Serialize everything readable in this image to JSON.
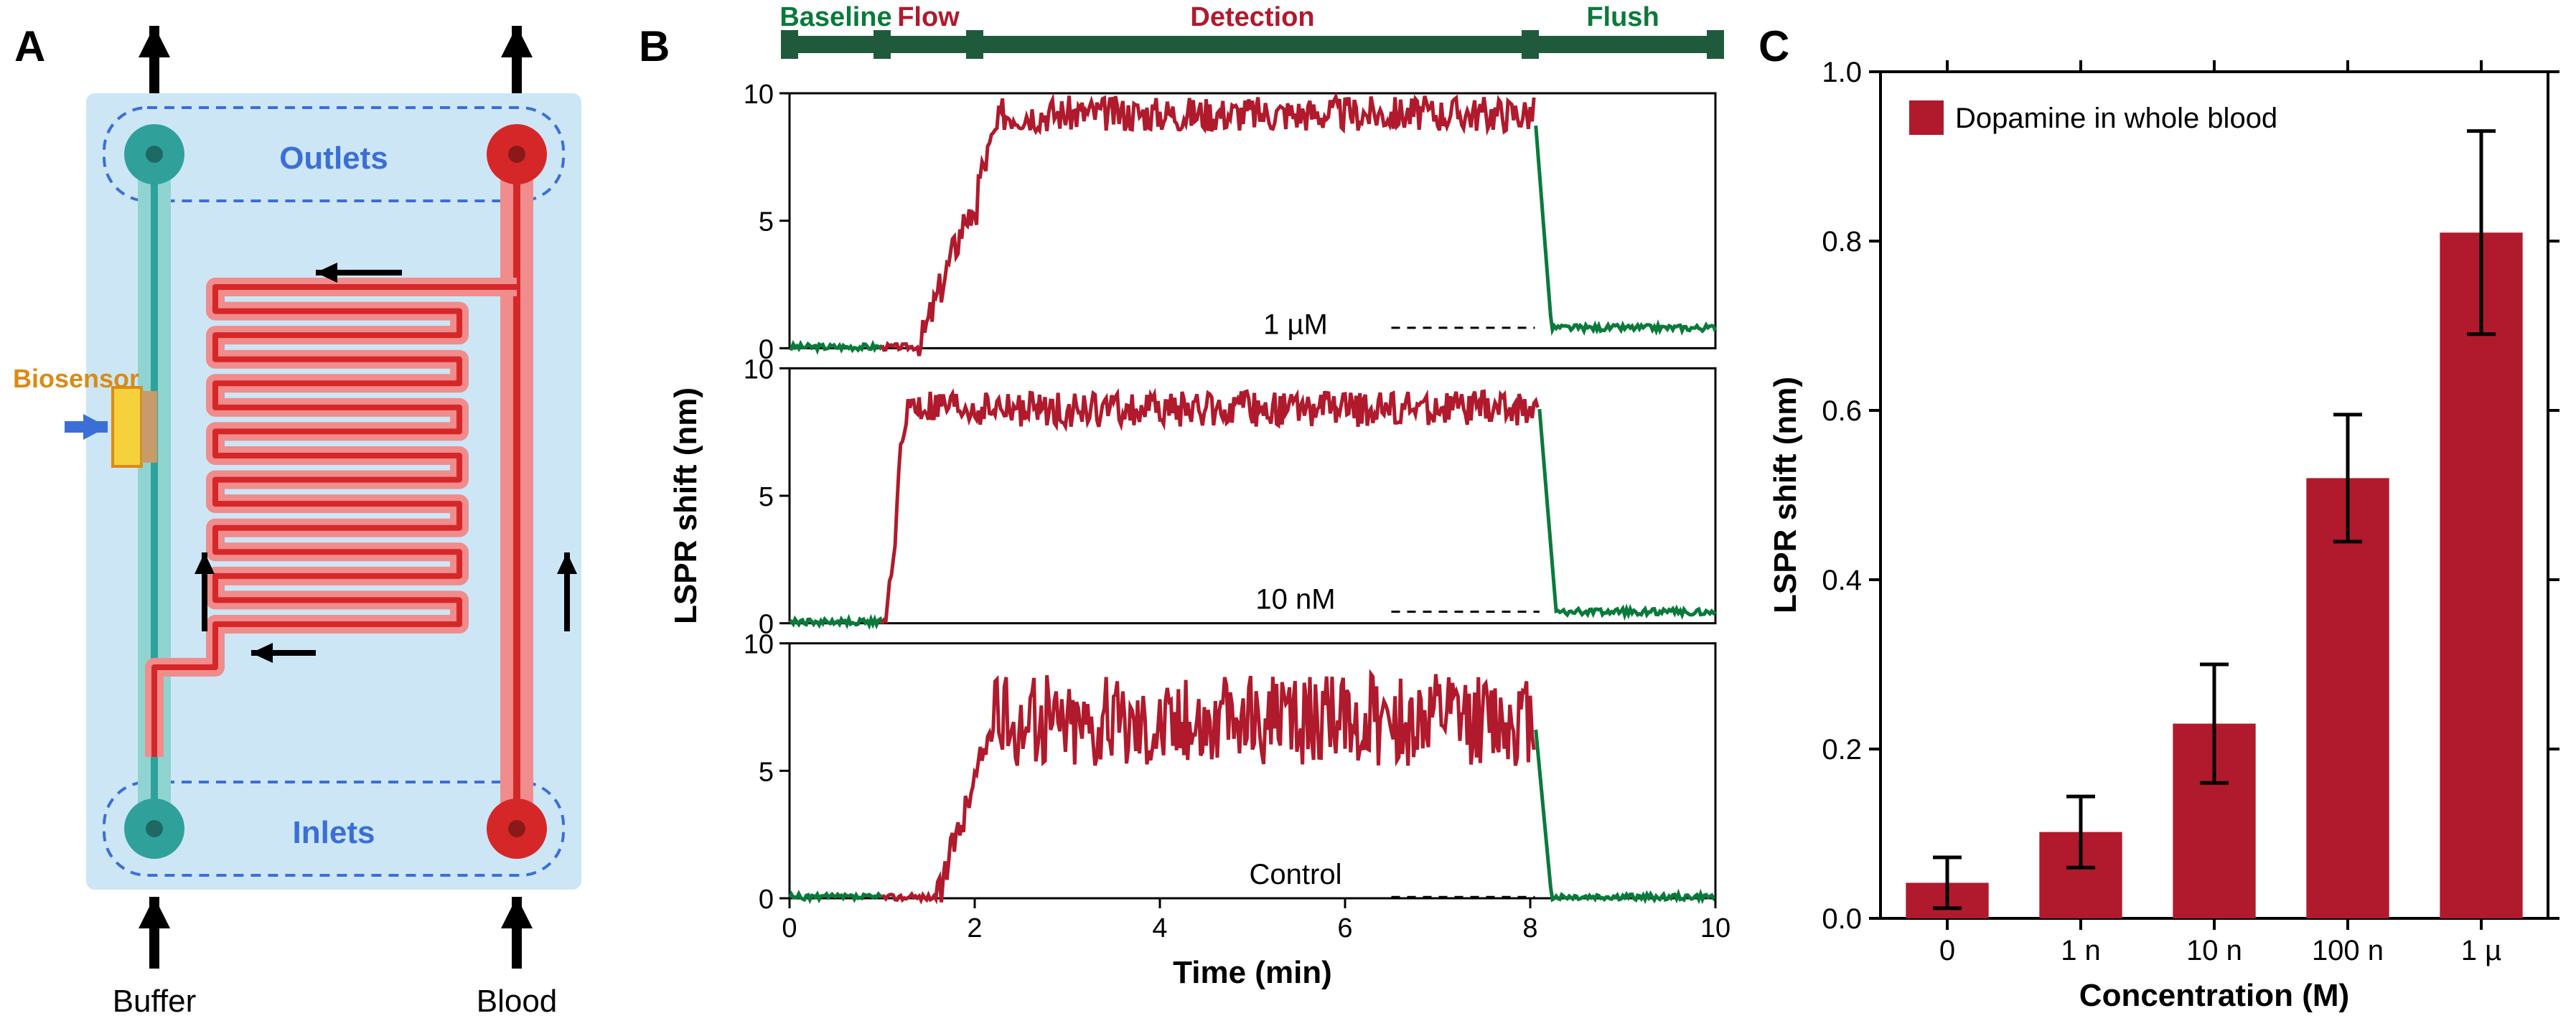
{
  "colors": {
    "black": "#000000",
    "darkred": "#b01a2c",
    "green": "#0a7a3b",
    "teal": "#2fa19a",
    "teal_fill": "#8fd4d0",
    "red": "#d62728",
    "red_fill": "#f08c8c",
    "blue": "#3b6fd6",
    "orange": "#d98b17",
    "yellow": "#f5d23c",
    "tan": "#c79b6a",
    "lightblue": "#cce6f5",
    "band_green": "#1f5a3c"
  },
  "panelA": {
    "label": "A",
    "outlets_label": "Outlets",
    "inlets_label": "Inlets",
    "biosensor_label": "Biosensor",
    "buffer_label": "Buffer",
    "blood_label": "Blood",
    "label_fontsize": 44,
    "biosensor_fontsize": 36
  },
  "panelB": {
    "label": "B",
    "phase_labels": [
      "Baseline",
      "Flow",
      "Detection",
      "Flush"
    ],
    "phase_colors": [
      "green",
      "darkred",
      "darkred",
      "green"
    ],
    "phase_ticks": [
      0,
      1,
      2,
      8,
      10
    ],
    "xlabel": "Time (min)",
    "ylabel": "LSPR shift (nm)",
    "xlim": [
      0,
      10
    ],
    "ylim": [
      0,
      10
    ],
    "xticks": [
      0,
      2,
      4,
      6,
      8,
      10
    ],
    "yticks": [
      0,
      5,
      10
    ],
    "axis_fontsize": 44,
    "tick_fontsize": 38,
    "note_fontsize": 40,
    "line_width": 5,
    "sub": [
      {
        "note": "1 µM",
        "plateau": 9.2,
        "rise": [
          1.4,
          2.3
        ],
        "flush_t": 8.05,
        "residual": 0.8,
        "dash_x0": 6.5
      },
      {
        "note": "10 nM",
        "plateau": 8.4,
        "rise": [
          1.05,
          1.25
        ],
        "flush_t": 8.1,
        "residual": 0.45,
        "dash_x0": 6.5
      },
      {
        "note": "Control",
        "plateau": 7.0,
        "rise": [
          1.6,
          2.2
        ],
        "flush_t": 8.05,
        "residual": 0.05,
        "dash_x0": 6.5
      }
    ]
  },
  "panelC": {
    "label": "C",
    "xlabel": "Concentration (M)",
    "ylabel": "LSPR shift (nm)",
    "legend": "Dopamine in whole blood",
    "categories": [
      "0",
      "1 n",
      "10 n",
      "100 n",
      "1 µ"
    ],
    "values": [
      0.042,
      0.102,
      0.23,
      0.52,
      0.81
    ],
    "err": [
      0.03,
      0.042,
      0.07,
      0.075,
      0.12
    ],
    "ylim": [
      0,
      1.0
    ],
    "yticks": [
      0.0,
      0.2,
      0.4,
      0.6,
      0.8,
      1.0
    ],
    "bar_color": "#b01a2c",
    "axis_fontsize": 44,
    "tick_fontsize": 40,
    "legend_fontsize": 40,
    "bar_width": 0.62
  }
}
